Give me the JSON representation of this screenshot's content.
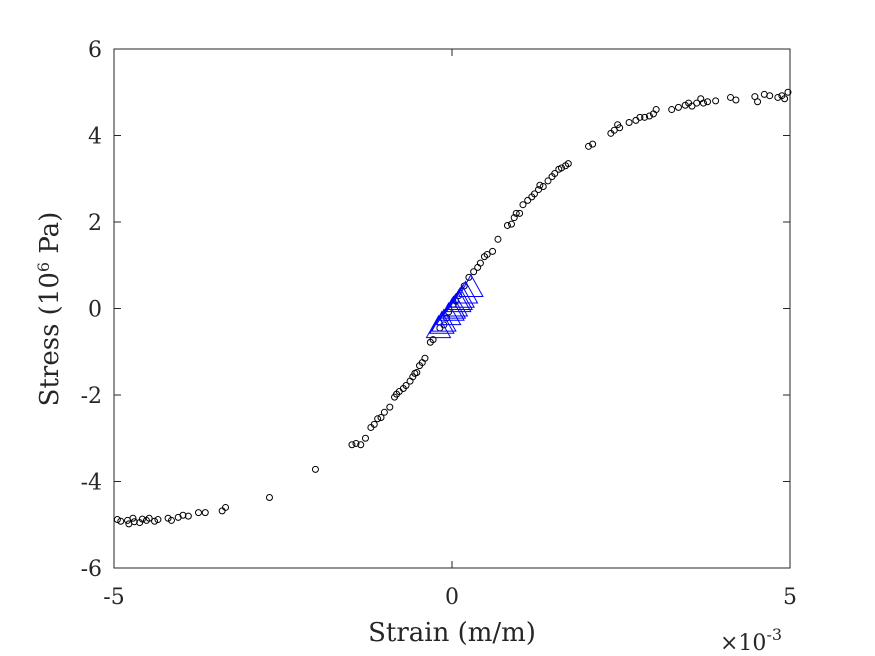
{
  "chart_data": {
    "type": "scatter",
    "title": "",
    "xlabel": "Strain (m/m)",
    "ylabel_main": "Stress (10",
    "ylabel_sup": "6",
    "ylabel_end": " Pa)",
    "x_exponent_base": "×10",
    "x_exponent_power": "-3",
    "xlim": [
      -5,
      5
    ],
    "ylim": [
      -6,
      6
    ],
    "x_ticks": [
      -5,
      0,
      5
    ],
    "y_ticks": [
      -6,
      -4,
      -2,
      0,
      2,
      4,
      6
    ],
    "x_tick_labels": [
      "-5",
      "0",
      "5"
    ],
    "y_tick_labels": [
      "-6",
      "-4",
      "-2",
      "0",
      "2",
      "4",
      "6"
    ],
    "grid": false,
    "colors": {
      "circles": "#000000",
      "triangles": "#0000ff",
      "axes": "#262626"
    },
    "series": [
      {
        "marker": "circle",
        "points": [
          [
            -4.95,
            -4.88
          ],
          [
            -4.9,
            -4.92
          ],
          [
            -4.8,
            -4.9
          ],
          [
            -4.78,
            -4.98
          ],
          [
            -4.72,
            -4.85
          ],
          [
            -4.7,
            -4.93
          ],
          [
            -4.62,
            -4.95
          ],
          [
            -4.58,
            -4.87
          ],
          [
            -4.52,
            -4.9
          ],
          [
            -4.48,
            -4.85
          ],
          [
            -4.4,
            -4.92
          ],
          [
            -4.35,
            -4.88
          ],
          [
            -4.2,
            -4.85
          ],
          [
            -4.15,
            -4.9
          ],
          [
            -4.05,
            -4.83
          ],
          [
            -3.98,
            -4.78
          ],
          [
            -3.9,
            -4.8
          ],
          [
            -3.75,
            -4.72
          ],
          [
            -3.65,
            -4.72
          ],
          [
            -3.4,
            -4.68
          ],
          [
            -3.35,
            -4.6
          ],
          [
            -2.7,
            -4.37
          ],
          [
            -2.02,
            -3.72
          ],
          [
            -1.48,
            -3.15
          ],
          [
            -1.42,
            -3.12
          ],
          [
            -1.35,
            -3.15
          ],
          [
            -1.28,
            -3.0
          ],
          [
            -1.2,
            -2.75
          ],
          [
            -1.15,
            -2.68
          ],
          [
            -1.1,
            -2.55
          ],
          [
            -1.05,
            -2.52
          ],
          [
            -1.0,
            -2.4
          ],
          [
            -0.92,
            -2.28
          ],
          [
            -0.85,
            -2.05
          ],
          [
            -0.82,
            -1.98
          ],
          [
            -0.78,
            -1.92
          ],
          [
            -0.72,
            -1.85
          ],
          [
            -0.68,
            -1.78
          ],
          [
            -0.62,
            -1.68
          ],
          [
            -0.58,
            -1.58
          ],
          [
            -0.55,
            -1.5
          ],
          [
            -0.52,
            -1.48
          ],
          [
            -0.48,
            -1.32
          ],
          [
            -0.44,
            -1.25
          ],
          [
            -0.4,
            -1.15
          ],
          [
            -0.32,
            -0.78
          ],
          [
            -0.28,
            -0.72
          ],
          [
            -0.18,
            -0.45
          ],
          [
            -0.12,
            -0.38
          ],
          [
            -0.08,
            -0.22
          ],
          [
            -0.05,
            -0.08
          ],
          [
            0.02,
            0.1
          ],
          [
            0.05,
            0.18
          ],
          [
            0.1,
            0.3
          ],
          [
            0.18,
            0.52
          ],
          [
            0.25,
            0.72
          ],
          [
            0.32,
            0.85
          ],
          [
            0.38,
            0.95
          ],
          [
            0.42,
            1.05
          ],
          [
            0.48,
            1.2
          ],
          [
            0.52,
            1.25
          ],
          [
            0.6,
            1.32
          ],
          [
            0.68,
            1.6
          ],
          [
            0.82,
            1.92
          ],
          [
            0.88,
            1.95
          ],
          [
            0.92,
            2.1
          ],
          [
            0.95,
            2.2
          ],
          [
            1.0,
            2.2
          ],
          [
            1.05,
            2.4
          ],
          [
            1.12,
            2.5
          ],
          [
            1.18,
            2.58
          ],
          [
            1.22,
            2.65
          ],
          [
            1.28,
            2.75
          ],
          [
            1.3,
            2.85
          ],
          [
            1.35,
            2.82
          ],
          [
            1.42,
            2.95
          ],
          [
            1.48,
            3.05
          ],
          [
            1.52,
            3.12
          ],
          [
            1.58,
            3.22
          ],
          [
            1.62,
            3.25
          ],
          [
            1.68,
            3.3
          ],
          [
            1.72,
            3.35
          ],
          [
            2.02,
            3.75
          ],
          [
            2.08,
            3.8
          ],
          [
            2.35,
            4.05
          ],
          [
            2.4,
            4.12
          ],
          [
            2.45,
            4.25
          ],
          [
            2.48,
            4.18
          ],
          [
            2.62,
            4.3
          ],
          [
            2.72,
            4.35
          ],
          [
            2.78,
            4.42
          ],
          [
            2.85,
            4.42
          ],
          [
            2.92,
            4.45
          ],
          [
            2.98,
            4.5
          ],
          [
            3.02,
            4.6
          ],
          [
            3.25,
            4.6
          ],
          [
            3.35,
            4.65
          ],
          [
            3.45,
            4.7
          ],
          [
            3.5,
            4.75
          ],
          [
            3.55,
            4.68
          ],
          [
            3.62,
            4.75
          ],
          [
            3.68,
            4.85
          ],
          [
            3.72,
            4.75
          ],
          [
            3.78,
            4.78
          ],
          [
            3.9,
            4.8
          ],
          [
            4.12,
            4.88
          ],
          [
            4.2,
            4.82
          ],
          [
            4.48,
            4.9
          ],
          [
            4.52,
            4.78
          ],
          [
            4.62,
            4.95
          ],
          [
            4.7,
            4.92
          ],
          [
            4.82,
            4.88
          ],
          [
            4.88,
            4.92
          ],
          [
            4.92,
            4.85
          ],
          [
            4.97,
            5.0
          ]
        ]
      },
      {
        "marker": "triangle",
        "points": [
          [
            -0.2,
            -0.45
          ],
          [
            -0.12,
            -0.3
          ],
          [
            -0.05,
            -0.15
          ],
          [
            0.0,
            -0.05
          ],
          [
            0.05,
            0.05
          ],
          [
            0.1,
            0.15
          ],
          [
            0.15,
            0.25
          ],
          [
            0.2,
            0.35
          ],
          [
            0.28,
            0.5
          ],
          [
            -0.15,
            -0.35
          ],
          [
            0.02,
            0.0
          ],
          [
            0.12,
            0.2
          ]
        ]
      }
    ]
  }
}
